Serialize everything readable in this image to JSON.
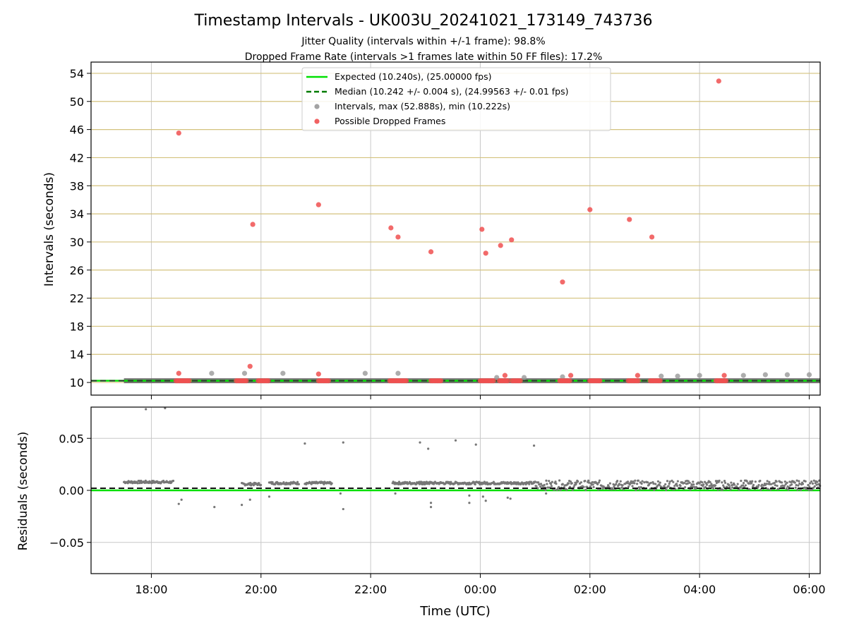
{
  "chart_data": [
    {
      "type": "scatter",
      "title": "Timestamp Intervals - UK003U_20241021_173149_743736",
      "subtitle_lines": [
        "Jitter Quality (intervals within +/-1 frame): 98.8%",
        "Dropped Frame Rate (intervals >1 frames late within 50 FF files): 17.2%"
      ],
      "ylabel": "Intervals (seconds)",
      "ylim": [
        8.2,
        55.6
      ],
      "yticks": [
        10,
        14,
        18,
        22,
        26,
        30,
        34,
        38,
        42,
        46,
        50,
        54
      ],
      "ytick_labels": [
        "10",
        "14",
        "18",
        "22",
        "26",
        "30",
        "34",
        "38",
        "42",
        "46",
        "50",
        "54"
      ],
      "x_unit": "hours since 00:00 UTC",
      "xlim": [
        -7.1,
        6.2
      ],
      "xticks": [
        -6,
        -4,
        -2,
        0,
        2,
        4,
        6
      ],
      "grid": "horizontal gridlines (tan) and vertical gridlines (grey)",
      "legend": {
        "placement": "top-center",
        "entries": [
          {
            "label": "Expected (10.240s), (25.00000 fps)",
            "marker": "solid-line",
            "color": "#00e000"
          },
          {
            "label": "Median (10.242 +/- 0.004 s), (24.99563 +/- 0.01 fps)",
            "marker": "dashed-line",
            "color": "#007a00"
          },
          {
            "label": "Intervals, max (52.888s), min (10.222s)",
            "marker": "dot",
            "color": "#999999"
          },
          {
            "label": "Possible Dropped Frames",
            "marker": "dot",
            "color": "#f05050"
          }
        ]
      },
      "series": [
        {
          "name": "Expected (10.240s), (25.00000 fps)",
          "kind": "hline",
          "value": 10.24,
          "color": "#00e000"
        },
        {
          "name": "Median (10.242 +/- 0.004 s), (24.99563 +/- 0.01 fps)",
          "kind": "hline-dashed",
          "value": 10.242,
          "color": "#007a00"
        },
        {
          "name": "Intervals, max (52.888s), min (10.222s)",
          "kind": "points",
          "color": "#999999",
          "baseline_band": {
            "x_start": -6.5,
            "x_end": 6.2,
            "y": 10.242
          },
          "points": [
            [
              -4.9,
              11.3
            ],
            [
              -4.3,
              11.3
            ],
            [
              -3.6,
              11.3
            ],
            [
              -2.1,
              11.3
            ],
            [
              -1.5,
              11.3
            ],
            [
              0.3,
              10.7
            ],
            [
              0.8,
              10.7
            ],
            [
              1.5,
              10.8
            ],
            [
              3.3,
              10.9
            ],
            [
              3.6,
              10.9
            ],
            [
              4.0,
              11.0
            ],
            [
              4.8,
              11.0
            ],
            [
              5.2,
              11.1
            ],
            [
              5.6,
              11.1
            ],
            [
              6.0,
              11.1
            ]
          ]
        },
        {
          "name": "Possible Dropped Frames",
          "kind": "points",
          "color": "#f05050",
          "points": [
            [
              -5.5,
              45.5
            ],
            [
              -5.5,
              11.3
            ],
            [
              -4.15,
              32.5
            ],
            [
              -4.2,
              12.3
            ],
            [
              -2.95,
              35.3
            ],
            [
              -2.95,
              11.2
            ],
            [
              -1.63,
              32.0
            ],
            [
              -1.5,
              30.7
            ],
            [
              -0.9,
              28.6
            ],
            [
              0.03,
              31.8
            ],
            [
              0.1,
              28.4
            ],
            [
              0.37,
              29.5
            ],
            [
              0.45,
              11.0
            ],
            [
              0.57,
              30.3
            ],
            [
              1.5,
              24.3
            ],
            [
              1.65,
              11.0
            ],
            [
              2.0,
              34.6
            ],
            [
              2.72,
              33.2
            ],
            [
              2.87,
              11.0
            ],
            [
              3.13,
              30.7
            ],
            [
              4.35,
              52.9
            ],
            [
              4.45,
              11.0
            ]
          ],
          "clusters_at_10_24": [
            [
              -5.55,
              -5.3
            ],
            [
              -4.45,
              -4.25
            ],
            [
              -4.05,
              -3.85
            ],
            [
              -2.95,
              -2.75
            ],
            [
              -1.65,
              -1.35
            ],
            [
              -0.9,
              -0.7
            ],
            [
              0.0,
              0.25
            ],
            [
              0.35,
              0.52
            ],
            [
              0.58,
              0.75
            ],
            [
              1.45,
              1.65
            ],
            [
              2.0,
              2.2
            ],
            [
              2.7,
              2.9
            ],
            [
              3.1,
              3.3
            ],
            [
              4.3,
              4.5
            ]
          ]
        }
      ]
    },
    {
      "type": "scatter",
      "xlabel": "Time (UTC)",
      "ylabel": "Residuals (seconds)",
      "ylim": [
        -0.08,
        0.08
      ],
      "yticks": [
        -0.05,
        0.0,
        0.05
      ],
      "ytick_labels": [
        "−0.05",
        "0.00",
        "0.05"
      ],
      "x_unit": "hours since 00:00 UTC",
      "xlim": [
        -7.1,
        6.2
      ],
      "xticks": [
        -6,
        -4,
        -2,
        0,
        2,
        4,
        6
      ],
      "xtick_labels": [
        "18:00",
        "20:00",
        "22:00",
        "00:00",
        "02:00",
        "04:00",
        "06:00"
      ],
      "grid": "horizontal and vertical gridlines (grey)",
      "series": [
        {
          "name": "Expected (10.240s), (25.00000 fps)",
          "kind": "hline",
          "value": 0.0,
          "color": "#00e000"
        },
        {
          "name": "Median (10.242 +/- 0.004 s), (24.99563 +/- 0.01 fps)",
          "kind": "hline-dashed",
          "value": 0.002,
          "color": "#007a00"
        },
        {
          "name": "Intervals, max (52.888s), min (10.222s)",
          "kind": "points",
          "color": "#777777",
          "outliers": [
            [
              -6.1,
              0.078
            ],
            [
              -5.75,
              0.079
            ],
            [
              -2.5,
              0.046
            ],
            [
              -3.2,
              0.045
            ],
            [
              -1.1,
              0.046
            ],
            [
              -0.95,
              0.04
            ],
            [
              -0.45,
              0.048
            ],
            [
              -0.08,
              0.044
            ],
            [
              0.98,
              0.043
            ],
            [
              -5.5,
              -0.013
            ],
            [
              -5.45,
              -0.009
            ],
            [
              -4.85,
              -0.016
            ],
            [
              -4.35,
              -0.014
            ],
            [
              -4.2,
              -0.009
            ],
            [
              -3.85,
              -0.006
            ],
            [
              -2.55,
              -0.003
            ],
            [
              -2.5,
              -0.018
            ],
            [
              -1.55,
              -0.003
            ],
            [
              -0.9,
              -0.012
            ],
            [
              -0.9,
              -0.016
            ],
            [
              -0.2,
              -0.012
            ],
            [
              -0.2,
              -0.005
            ],
            [
              0.05,
              -0.006
            ],
            [
              0.1,
              -0.01
            ],
            [
              0.5,
              -0.007
            ],
            [
              0.55,
              -0.008
            ],
            [
              1.2,
              -0.003
            ]
          ],
          "dense_runs": [
            {
              "x_start": -6.5,
              "x_end": -5.6,
              "y": 0.008
            },
            {
              "x_start": -4.35,
              "x_end": -4.0,
              "y": 0.006
            },
            {
              "x_start": -3.85,
              "x_end": -3.3,
              "y": 0.007
            },
            {
              "x_start": -3.2,
              "x_end": -2.7,
              "y": 0.007
            },
            {
              "x_start": -1.6,
              "x_end": -0.9,
              "y": 0.007
            },
            {
              "x_start": -1.1,
              "x_end": 1.0,
              "y": 0.007
            },
            {
              "x_start": 1.0,
              "x_end": 6.2,
              "y": 0.005,
              "spread": 0.009
            }
          ]
        }
      ]
    }
  ]
}
